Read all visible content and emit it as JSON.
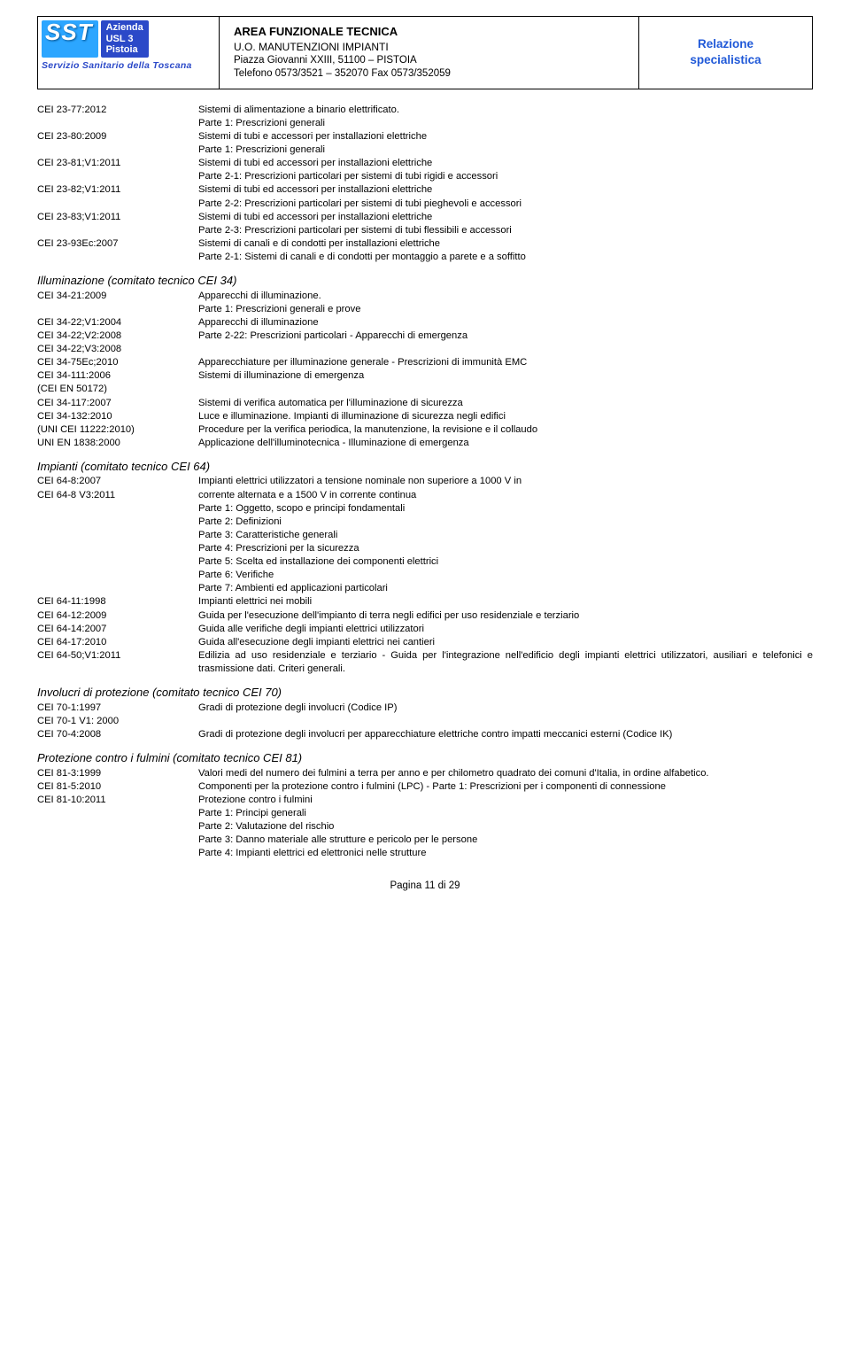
{
  "header": {
    "logo_sst": "SST",
    "logo_az": "Azienda\nUSL 3\nPistoia",
    "logo_sub": "Servizio Sanitario della Toscana",
    "mid_l1": "AREA FUNZIONALE TECNICA",
    "mid_l2": "U.O. MANUTENZIONI IMPIANTI",
    "mid_l3": "Piazza Giovanni XXIII, 51100 – PISTOIA",
    "mid_l4": "Telefono 0573/3521 – 352070 Fax 0573/352059",
    "right_l1": "Relazione",
    "right_l2": "specialistica"
  },
  "sec23": [
    {
      "c": "CEI 23-77:2012",
      "d": [
        "Sistemi di alimentazione a binario elettrificato.",
        "Parte 1: Prescrizioni generali"
      ]
    },
    {
      "c": "CEI 23-80:2009",
      "d": [
        "Sistemi di tubi e accessori per installazioni elettriche",
        "Parte 1: Prescrizioni generali"
      ]
    },
    {
      "c": "CEI 23-81;V1:2011",
      "d": [
        "Sistemi di tubi ed accessori per installazioni elettriche",
        "Parte 2-1: Prescrizioni particolari per sistemi di tubi rigidi e accessori"
      ]
    },
    {
      "c": "CEI 23-82;V1:2011",
      "d": [
        "Sistemi di tubi ed accessori per installazioni elettriche",
        "Parte 2-2: Prescrizioni particolari per sistemi di tubi pieghevoli e accessori"
      ]
    },
    {
      "c": "CEI 23-83;V1:2011",
      "d": [
        "Sistemi di tubi ed accessori per installazioni elettriche",
        "Parte 2-3: Prescrizioni particolari per sistemi di tubi flessibili e accessori"
      ]
    },
    {
      "c": "CEI 23-93Ec:2007",
      "d": [
        "Sistemi di canali e di condotti per installazioni elettriche",
        "Parte 2-1: Sistemi di canali e di condotti per montaggio a parete e a soffitto"
      ]
    }
  ],
  "sec34_title": "Illuminazione (comitato tecnico CEI 34)",
  "sec34": [
    {
      "c": "CEI 34-21:2009",
      "d": [
        "Apparecchi di illuminazione.",
        "Parte 1: Prescrizioni generali e prove"
      ]
    },
    {
      "c": "CEI 34-22;V1:2004",
      "d": [
        "Apparecchi di illuminazione"
      ]
    },
    {
      "c": "CEI 34-22;V2:2008",
      "d": [
        "Parte 2-22: Prescrizioni particolari - Apparecchi di emergenza"
      ]
    },
    {
      "c": "CEI 34-22;V3:2008",
      "d": [
        ""
      ]
    },
    {
      "c": "CEI 34-75Ec;2010",
      "d": [
        "Apparecchiature per illuminazione generale - Prescrizioni di immunità EMC"
      ]
    },
    {
      "c": "CEI 34-111:2006",
      "d": [
        "Sistemi di illuminazione di emergenza"
      ]
    },
    {
      "c": "(CEI EN 50172)",
      "d": [
        ""
      ]
    },
    {
      "c": "CEI 34-117:2007",
      "d": [
        "Sistemi di verifica automatica per l'illuminazione di sicurezza"
      ]
    },
    {
      "c": "CEI 34-132:2010",
      "d": [
        "Luce e illuminazione. Impianti di illuminazione di sicurezza negli edifici"
      ],
      "j": true
    },
    {
      "c": "(UNI CEI 11222:2010)",
      "d": [
        "Procedure per la verifica periodica, la manutenzione, la revisione e il collaudo"
      ]
    },
    {
      "c": "UNI EN 1838:2000",
      "d": [
        "Applicazione dell'illuminotecnica - Illuminazione di emergenza"
      ]
    }
  ],
  "sec64_title": "Impianti (comitato tecnico CEI 64)",
  "sec64": [
    {
      "c": "CEI 64-8:2007",
      "d": [
        "Impianti elettrici utilizzatori a tensione nominale non superiore a 1000 V in"
      ],
      "j": true
    },
    {
      "c": "CEI 64-8 V3:2011",
      "d": [
        "corrente alternata e a 1500 V in corrente continua",
        "Parte 1: Oggetto, scopo e principi fondamentali",
        "Parte 2: Definizioni",
        "Parte 3: Caratteristiche generali",
        "Parte 4: Prescrizioni per la sicurezza",
        "Parte 5: Scelta ed installazione dei componenti elettrici",
        "Parte 6: Verifiche",
        "Parte 7: Ambienti ed applicazioni particolari"
      ]
    },
    {
      "c": "CEI 64-11:1998",
      "d": [
        "Impianti elettrici nei mobili"
      ]
    },
    {
      "c": "CEI 64-12:2009",
      "d": [
        "Guida per l'esecuzione dell'impianto di terra negli edifici per uso residenziale e terziario"
      ],
      "j": true
    },
    {
      "c": "CEI 64-14:2007",
      "d": [
        "Guida alle verifiche degli impianti elettrici utilizzatori"
      ]
    },
    {
      "c": "CEI 64-17:2010",
      "d": [
        "Guida all'esecuzione degli impianti elettrici nei cantieri"
      ]
    },
    {
      "c": "CEI 64-50;V1:2011",
      "d": [
        "Edilizia ad uso residenziale e terziario - Guida per l'integrazione nell'edificio degli impianti elettrici utilizzatori, ausiliari e telefonici e trasmissione dati. Criteri generali."
      ],
      "j": true
    }
  ],
  "sec70_title": "Involucri di protezione (comitato tecnico CEI 70)",
  "sec70": [
    {
      "c": "CEI 70-1:1997",
      "d": [
        "Gradi di protezione degli involucri (Codice IP)"
      ]
    },
    {
      "c": "CEI 70-1 V1: 2000",
      "d": [
        ""
      ]
    },
    {
      "c": "CEI 70-4:2008",
      "d": [
        "Gradi di protezione degli involucri per apparecchiature elettriche contro impatti meccanici esterni (Codice IK)"
      ],
      "j": true
    }
  ],
  "sec81_title": "Protezione contro i fulmini (comitato tecnico CEI 81)",
  "sec81": [
    {
      "c": "CEI 81-3:1999",
      "d": [
        "Valori medi del numero dei fulmini a terra per anno e per chilometro quadrato dei comuni d'Italia, in ordine alfabetico."
      ],
      "j": true
    },
    {
      "c": "CEI 81-5:2010",
      "d": [
        "Componenti per la protezione contro i fulmini (LPC) - Parte 1: Prescrizioni per i componenti di connessione"
      ],
      "j": true
    },
    {
      "c": "CEI 81-10:2011",
      "d": [
        "Protezione contro i fulmini",
        "Parte 1: Principi generali",
        "Parte 2: Valutazione del rischio",
        "Parte 3: Danno materiale alle strutture e pericolo per le persone",
        "Parte 4: Impianti elettrici ed elettronici nelle strutture"
      ]
    }
  ],
  "page_num": "Pagina 11 di 29"
}
